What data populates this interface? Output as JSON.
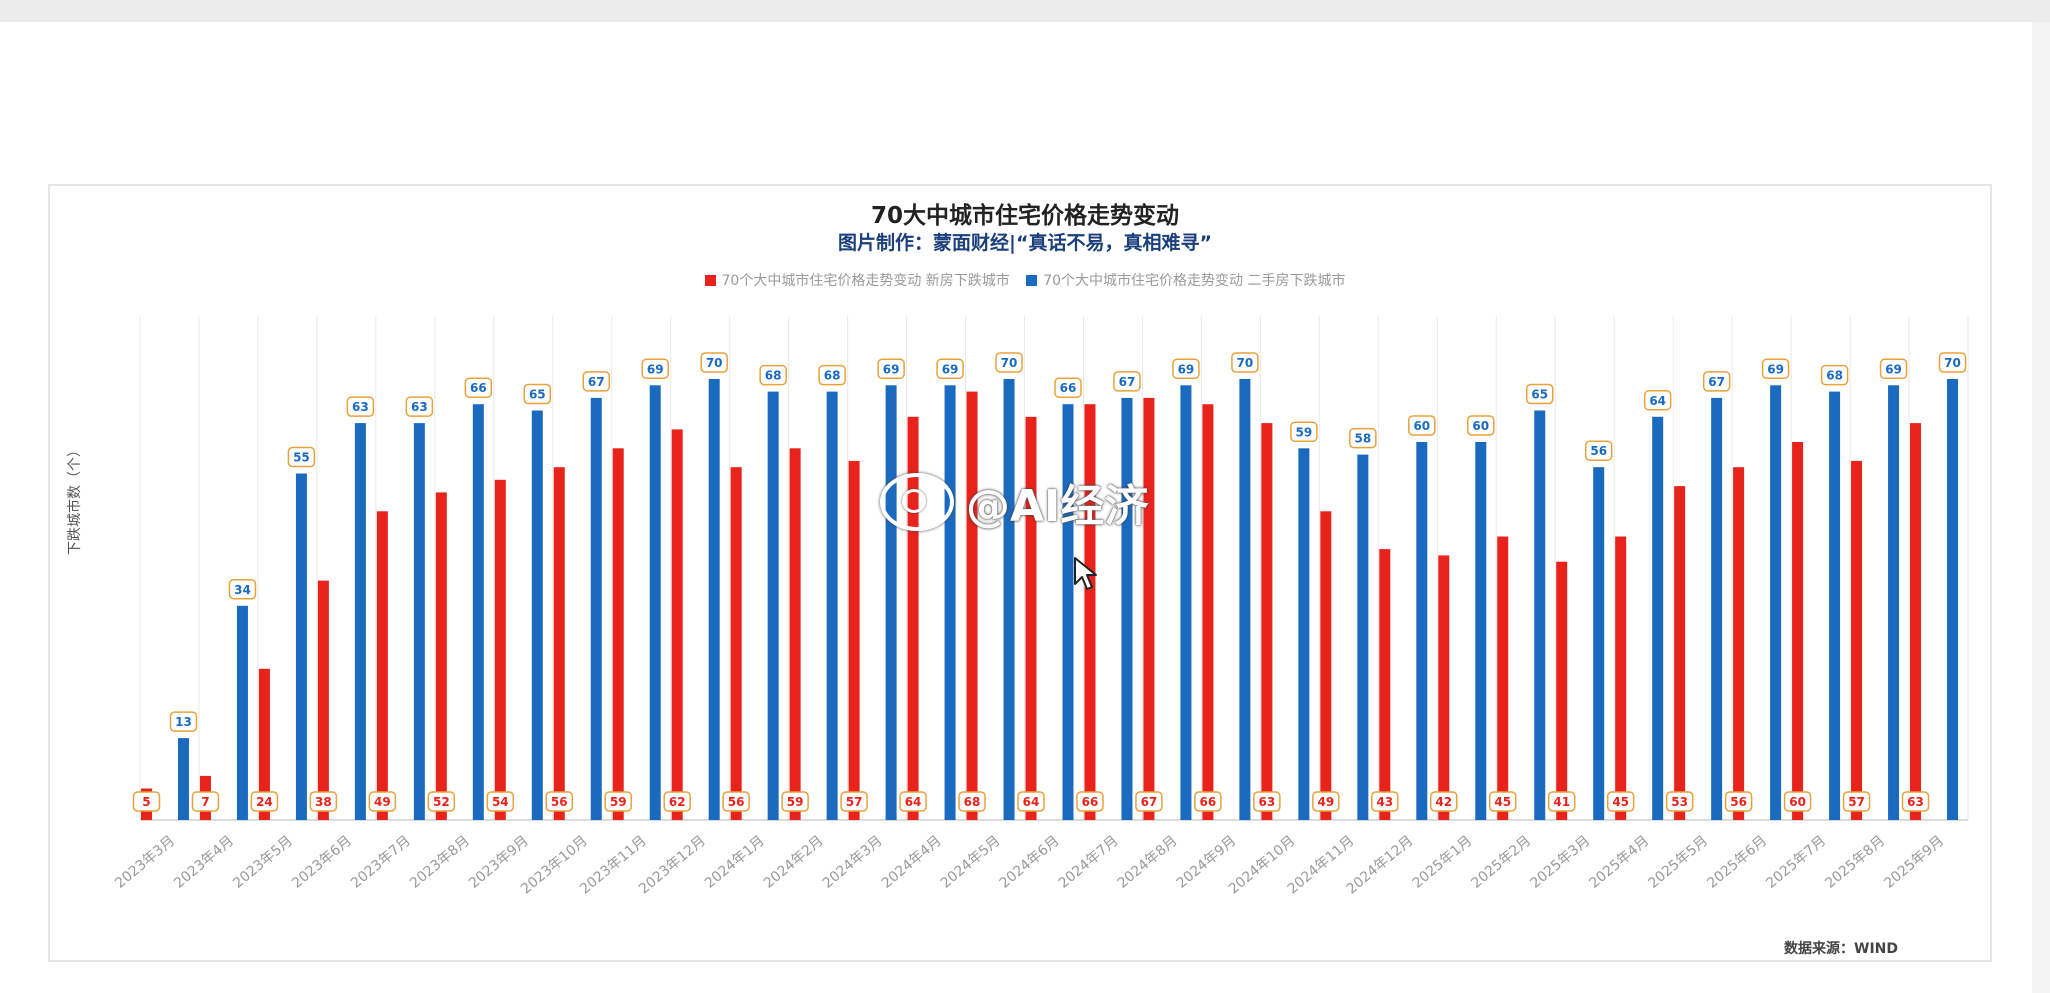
{
  "colors": {
    "new_home": "#e8231c",
    "second_hand": "#1a6bbf",
    "label_border": "#e8a23a",
    "grid": "#e9e9e9"
  },
  "chart_data": {
    "type": "bar",
    "title": "70大中城市住宅价格走势变动",
    "subtitle": "图片制作：蒙面财经|“真话不易，真相难寻”",
    "ylabel": "下跌城市数（个）",
    "xlabel": "",
    "source": "数据来源：WIND",
    "ylim": [
      0,
      80
    ],
    "grid": true,
    "legend_position": "top",
    "categories": [
      "2023年3月",
      "2023年4月",
      "2023年5月",
      "2023年6月",
      "2023年7月",
      "2023年8月",
      "2023年9月",
      "2023年10月",
      "2023年11月",
      "2023年12月",
      "2024年1月",
      "2024年2月",
      "2024年3月",
      "2024年4月",
      "2024年5月",
      "2024年6月",
      "2024年7月",
      "2024年8月",
      "2024年9月",
      "2024年10月",
      "2024年11月",
      "2024年12月",
      "2025年1月",
      "2025年2月",
      "2025年3月",
      "2025年4月",
      "2025年5月",
      "2025年6月",
      "2025年7月",
      "2025年8月",
      "2025年9月"
    ],
    "series": [
      {
        "name": "70个大中城市住宅价格走势变动 新房下跌城市",
        "values": [
          5,
          7,
          24,
          38,
          49,
          52,
          54,
          56,
          59,
          62,
          56,
          59,
          57,
          64,
          68,
          64,
          66,
          67,
          66,
          63,
          49,
          43,
          42,
          45,
          41,
          45,
          53,
          56,
          60,
          57,
          63
        ]
      },
      {
        "name": "70个大中城市住宅价格走势变动 二手房下跌城市",
        "values": [
          13,
          34,
          55,
          63,
          63,
          66,
          65,
          67,
          69,
          70,
          68,
          68,
          69,
          69,
          70,
          66,
          67,
          69,
          70,
          59,
          58,
          60,
          60,
          65,
          56,
          64,
          67,
          69,
          68,
          69,
          70
        ]
      }
    ]
  },
  "watermark": {
    "text": "@AI经济",
    "icon": "weibo-icon"
  },
  "cursor": {
    "icon": "mouse-pointer-icon"
  }
}
